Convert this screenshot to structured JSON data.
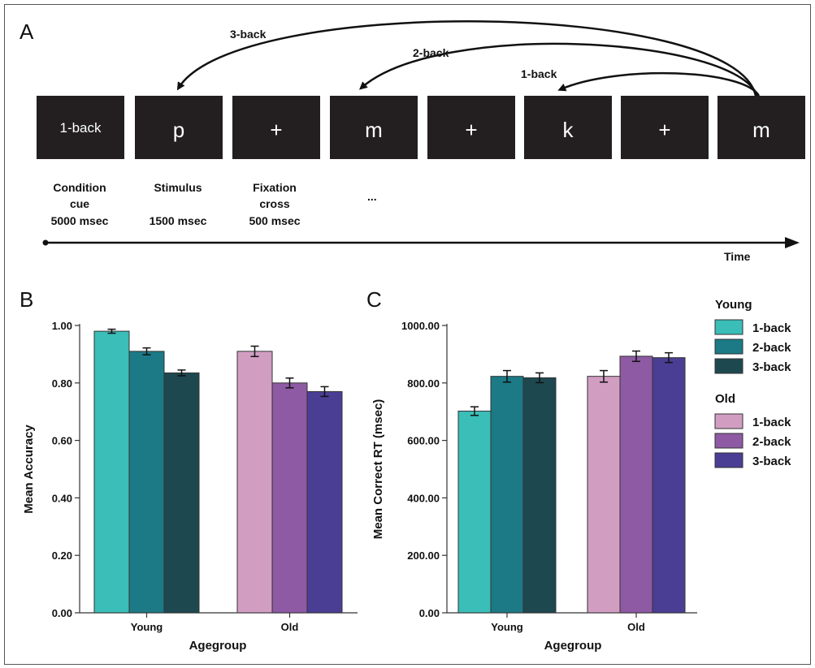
{
  "panel_a": {
    "letter": "A",
    "boxes": [
      "1-back",
      "p",
      "+",
      "m",
      "+",
      "k",
      "+",
      "m"
    ],
    "back_labels": {
      "three": "3-back",
      "two": "2-back",
      "one": "1-back"
    },
    "captions": {
      "cue": [
        "Condition",
        "cue",
        "5000 msec"
      ],
      "stimulus": [
        "Stimulus",
        "",
        "1500 msec"
      ],
      "fixation": [
        "Fixation",
        "cross",
        "500 msec"
      ],
      "ellipsis": "..."
    },
    "time_label": "Time"
  },
  "legend": {
    "groups": [
      {
        "title": "Young",
        "items": [
          {
            "label": "1-back",
            "color": "#3bbdb8"
          },
          {
            "label": "2-back",
            "color": "#1b7a86"
          },
          {
            "label": "3-back",
            "color": "#1e4850"
          }
        ]
      },
      {
        "title": "Old",
        "items": [
          {
            "label": "1-back",
            "color": "#d19ec2"
          },
          {
            "label": "2-back",
            "color": "#8e5aa3"
          },
          {
            "label": "3-back",
            "color": "#4a3e94"
          }
        ]
      }
    ]
  },
  "chart_data": [
    {
      "type": "bar",
      "panel": "B",
      "title": "",
      "xlabel": "Agegroup",
      "ylabel": "Mean Accuracy",
      "categories": [
        "Young",
        "Old"
      ],
      "ylim": [
        0,
        1.0
      ],
      "yticks": [
        "0.00",
        "0.20",
        "0.40",
        "0.60",
        "0.80",
        "1.00"
      ],
      "series": [
        {
          "name": "1-back",
          "values": [
            0.98,
            0.91
          ],
          "errors": [
            0.007,
            0.018
          ]
        },
        {
          "name": "2-back",
          "values": [
            0.91,
            0.8
          ],
          "errors": [
            0.012,
            0.017
          ]
        },
        {
          "name": "3-back",
          "values": [
            0.835,
            0.77
          ],
          "errors": [
            0.01,
            0.017
          ]
        }
      ],
      "colors": [
        [
          "#3bbdb8",
          "#d19ec2"
        ],
        [
          "#1b7a86",
          "#8e5aa3"
        ],
        [
          "#1e4850",
          "#4a3e94"
        ]
      ],
      "grid": false
    },
    {
      "type": "bar",
      "panel": "C",
      "title": "",
      "xlabel": "Agegroup",
      "ylabel": "Mean Correct RT (msec)",
      "categories": [
        "Young",
        "Old"
      ],
      "ylim": [
        0,
        1000
      ],
      "yticks": [
        "0.00",
        "200.00",
        "400.00",
        "600.00",
        "800.00",
        "1000.00"
      ],
      "series": [
        {
          "name": "1-back",
          "values": [
            702,
            823
          ],
          "errors": [
            15,
            20
          ]
        },
        {
          "name": "2-back",
          "values": [
            823,
            893
          ],
          "errors": [
            20,
            18
          ]
        },
        {
          "name": "3-back",
          "values": [
            818,
            888
          ],
          "errors": [
            17,
            17
          ]
        }
      ],
      "colors": [
        [
          "#3bbdb8",
          "#d19ec2"
        ],
        [
          "#1b7a86",
          "#8e5aa3"
        ],
        [
          "#1e4850",
          "#4a3e94"
        ]
      ],
      "grid": false
    }
  ]
}
